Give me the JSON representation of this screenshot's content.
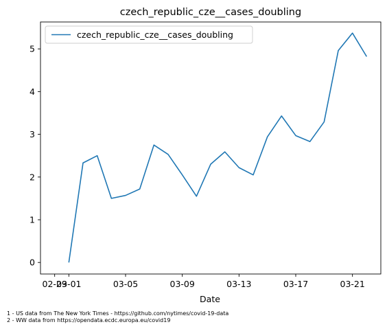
{
  "chart_data": {
    "type": "line",
    "title": "czech_republic_cze__cases_doubling",
    "xlabel": "Date",
    "ylabel": "",
    "x": [
      "03-01",
      "03-02",
      "03-03",
      "03-04",
      "03-05",
      "03-06",
      "03-07",
      "03-08",
      "03-09",
      "03-10",
      "03-11",
      "03-12",
      "03-13",
      "03-14",
      "03-15",
      "03-16",
      "03-17",
      "03-18",
      "03-19",
      "03-20",
      "03-21",
      "03-22"
    ],
    "series": [
      {
        "name": "czech_republic_cze__cases_doubling",
        "color": "#1f77b4",
        "values": [
          0.0,
          2.33,
          2.5,
          1.5,
          1.57,
          1.72,
          2.75,
          2.53,
          2.05,
          1.55,
          2.3,
          2.59,
          2.22,
          2.05,
          2.94,
          3.43,
          2.97,
          2.83,
          3.29,
          4.96,
          5.37,
          4.82
        ]
      }
    ],
    "xlim": [
      "02-28",
      "03-23"
    ],
    "ylim": [
      -0.27,
      5.63
    ],
    "x_ticks": [
      "02-29",
      "03-01",
      "03-05",
      "03-09",
      "03-13",
      "03-17",
      "03-21"
    ],
    "y_ticks": [
      0,
      1,
      2,
      3,
      4,
      5
    ],
    "grid": false,
    "legend": "top-left"
  },
  "footnotes": [
    "1 - US data from The New York Times - https://github.com/nytimes/covid-19-data",
    "2 - WW data from https://opendata.ecdc.europa.eu/covid19"
  ]
}
